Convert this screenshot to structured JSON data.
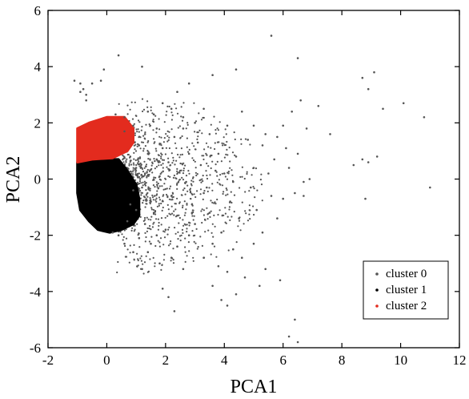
{
  "chart_data": {
    "type": "scatter",
    "title": "",
    "xlabel": "PCA1",
    "ylabel": "PCA2",
    "xlim": [
      -2,
      12
    ],
    "ylim": [
      -6,
      6
    ],
    "xticks": [
      "-2",
      "0",
      "2",
      "4",
      "6",
      "8",
      "10",
      "12"
    ],
    "yticks": [
      "-6",
      "-4",
      "-2",
      "0",
      "2",
      "4",
      "6"
    ],
    "grid": false,
    "legend_position": "bottom-right",
    "series": [
      {
        "name": "cluster 0",
        "color": "#555555",
        "points": [
          [
            -1.1,
            3.5
          ],
          [
            -0.9,
            3.4
          ],
          [
            -0.8,
            3.2
          ],
          [
            -0.7,
            3.0
          ],
          [
            -0.5,
            3.4
          ],
          [
            -0.2,
            3.5
          ],
          [
            -0.9,
            3.1
          ],
          [
            -0.7,
            2.8
          ],
          [
            -0.1,
            3.9
          ],
          [
            0.4,
            4.4
          ],
          [
            1.2,
            4.0
          ],
          [
            5.6,
            5.1
          ],
          [
            6.5,
            4.3
          ],
          [
            4.4,
            3.9
          ],
          [
            3.6,
            3.7
          ],
          [
            2.8,
            3.4
          ],
          [
            2.4,
            3.1
          ],
          [
            1.9,
            2.7
          ],
          [
            8.7,
            3.6
          ],
          [
            9.1,
            3.8
          ],
          [
            8.9,
            3.2
          ],
          [
            9.4,
            2.5
          ],
          [
            10.1,
            2.7
          ],
          [
            11.0,
            -0.3
          ],
          [
            10.8,
            2.2
          ],
          [
            9.2,
            0.8
          ],
          [
            8.9,
            0.6
          ],
          [
            8.7,
            0.7
          ],
          [
            8.4,
            0.5
          ],
          [
            8.8,
            -0.7
          ],
          [
            7.6,
            1.6
          ],
          [
            7.2,
            2.6
          ],
          [
            6.6,
            2.8
          ],
          [
            6.3,
            2.4
          ],
          [
            6.8,
            1.8
          ],
          [
            6.5,
            0.9
          ],
          [
            6.1,
            1.1
          ],
          [
            5.7,
            0.7
          ],
          [
            5.4,
            1.6
          ],
          [
            5.0,
            1.9
          ],
          [
            6.0,
            1.9
          ],
          [
            5.8,
            1.5
          ],
          [
            6.7,
            -0.1
          ],
          [
            6.9,
            0.0
          ],
          [
            6.4,
            -0.5
          ],
          [
            6.0,
            -0.7
          ],
          [
            6.7,
            -0.6
          ],
          [
            5.8,
            -1.4
          ],
          [
            5.3,
            -1.9
          ],
          [
            5.0,
            -2.3
          ],
          [
            4.6,
            -2.8
          ],
          [
            4.1,
            -3.3
          ],
          [
            3.6,
            -3.8
          ],
          [
            4.7,
            -3.5
          ],
          [
            5.4,
            -3.2
          ],
          [
            5.9,
            -3.6
          ],
          [
            4.4,
            -4.1
          ],
          [
            3.9,
            -4.3
          ],
          [
            4.1,
            -4.5
          ],
          [
            2.3,
            -4.7
          ],
          [
            5.2,
            -3.8
          ],
          [
            6.4,
            -5.0
          ],
          [
            6.2,
            -5.6
          ],
          [
            6.5,
            -5.8
          ],
          [
            1.9,
            -3.9
          ],
          [
            2.1,
            -4.2
          ],
          [
            1.2,
            -3.2
          ],
          [
            0.9,
            -2.6
          ],
          [
            1.5,
            -2.3
          ],
          [
            1.8,
            -3.0
          ],
          [
            2.6,
            -3.2
          ],
          [
            3.3,
            -2.8
          ],
          [
            3.8,
            -3.1
          ],
          [
            4.3,
            -2.5
          ],
          [
            3.9,
            -1.9
          ],
          [
            4.5,
            -1.4
          ],
          [
            5.1,
            -1.1
          ],
          [
            5.6,
            -0.6
          ],
          [
            4.9,
            -0.3
          ],
          [
            4.3,
            -0.1
          ],
          [
            3.7,
            0.3
          ],
          [
            4.4,
            0.8
          ],
          [
            5.0,
            0.4
          ],
          [
            5.3,
            1.2
          ],
          [
            4.8,
            1.4
          ],
          [
            4.1,
            1.9
          ],
          [
            3.5,
            1.6
          ],
          [
            3.1,
            1.3
          ],
          [
            2.6,
            2.2
          ],
          [
            3.0,
            2.0
          ],
          [
            2.2,
            2.5
          ],
          [
            1.6,
            2.3
          ],
          [
            1.4,
            2.4
          ],
          [
            1.7,
            1.8
          ],
          [
            2.3,
            1.5
          ],
          [
            2.8,
            0.9
          ],
          [
            3.2,
            0.5
          ],
          [
            2.7,
            -0.1
          ],
          [
            3.3,
            -0.5
          ],
          [
            2.9,
            -0.9
          ],
          [
            2.4,
            -1.3
          ],
          [
            3.0,
            -1.6
          ],
          [
            3.5,
            -1.2
          ],
          [
            2.0,
            -1.8
          ],
          [
            1.7,
            -2.0
          ],
          [
            2.4,
            -2.4
          ],
          [
            1.3,
            -1.6
          ],
          [
            1.5,
            -0.8
          ],
          [
            1.2,
            -0.3
          ],
          [
            1.8,
            0.1
          ],
          [
            2.1,
            0.6
          ],
          [
            1.4,
            0.9
          ],
          [
            1.0,
            0.4
          ],
          [
            1.1,
            1.2
          ],
          [
            1.3,
            1.6
          ],
          [
            0.9,
            1.9
          ],
          [
            0.6,
            2.2
          ],
          [
            0.3,
            2.3
          ],
          [
            0.8,
            0.8
          ],
          [
            0.9,
            -0.4
          ],
          [
            1.0,
            -1.1
          ],
          [
            0.7,
            -1.5
          ],
          [
            0.4,
            -2.0
          ],
          [
            0.2,
            -1.9
          ],
          [
            1.1,
            -2.1
          ],
          [
            0.6,
            -2.3
          ],
          [
            2.2,
            -0.6
          ],
          [
            2.5,
            0.3
          ],
          [
            1.9,
            1.1
          ],
          [
            3.8,
            0.9
          ],
          [
            4.2,
            -0.8
          ],
          [
            3.6,
            -2.3
          ],
          [
            2.8,
            -2.0
          ],
          [
            2.2,
            -2.8
          ],
          [
            5.5,
            0.2
          ],
          [
            6.2,
            0.4
          ],
          [
            4.6,
            2.4
          ],
          [
            3.3,
            2.5
          ],
          [
            0.6,
            1.7
          ],
          [
            1.6,
            -1.2
          ],
          [
            2.6,
            1.8
          ],
          [
            4.0,
            0.2
          ],
          [
            3.4,
            -0.3
          ],
          [
            1.3,
            0.2
          ],
          [
            1.7,
            0.7
          ],
          [
            0.8,
            -0.9
          ],
          [
            1.4,
            -2.6
          ],
          [
            2.9,
            -1.2
          ]
        ]
      },
      {
        "name": "cluster 1",
        "color": "#000000",
        "points": []
      },
      {
        "name": "cluster 2",
        "color": "#e32b1e",
        "points": []
      }
    ],
    "regions": [
      {
        "series": "cluster 1",
        "color": "#000000",
        "polygon": [
          [
            -1.0,
            0.6
          ],
          [
            -0.2,
            0.7
          ],
          [
            0.4,
            0.7
          ],
          [
            0.7,
            0.3
          ],
          [
            1.0,
            -0.2
          ],
          [
            1.1,
            -0.7
          ],
          [
            1.1,
            -1.3
          ],
          [
            0.9,
            -1.6
          ],
          [
            0.5,
            -1.8
          ],
          [
            0.1,
            -1.9
          ],
          [
            -0.3,
            -1.8
          ],
          [
            -0.6,
            -1.5
          ],
          [
            -0.9,
            -1.1
          ],
          [
            -1.0,
            -0.5
          ]
        ]
      },
      {
        "series": "cluster 2",
        "color": "#e32b1e",
        "polygon": [
          [
            -1.0,
            1.8
          ],
          [
            -0.6,
            2.0
          ],
          [
            0.0,
            2.2
          ],
          [
            0.6,
            2.2
          ],
          [
            0.9,
            1.8
          ],
          [
            0.9,
            1.3
          ],
          [
            0.7,
            1.0
          ],
          [
            0.2,
            0.75
          ],
          [
            -0.5,
            0.7
          ],
          [
            -1.0,
            0.6
          ],
          [
            -1.0,
            1.2
          ]
        ]
      }
    ]
  }
}
